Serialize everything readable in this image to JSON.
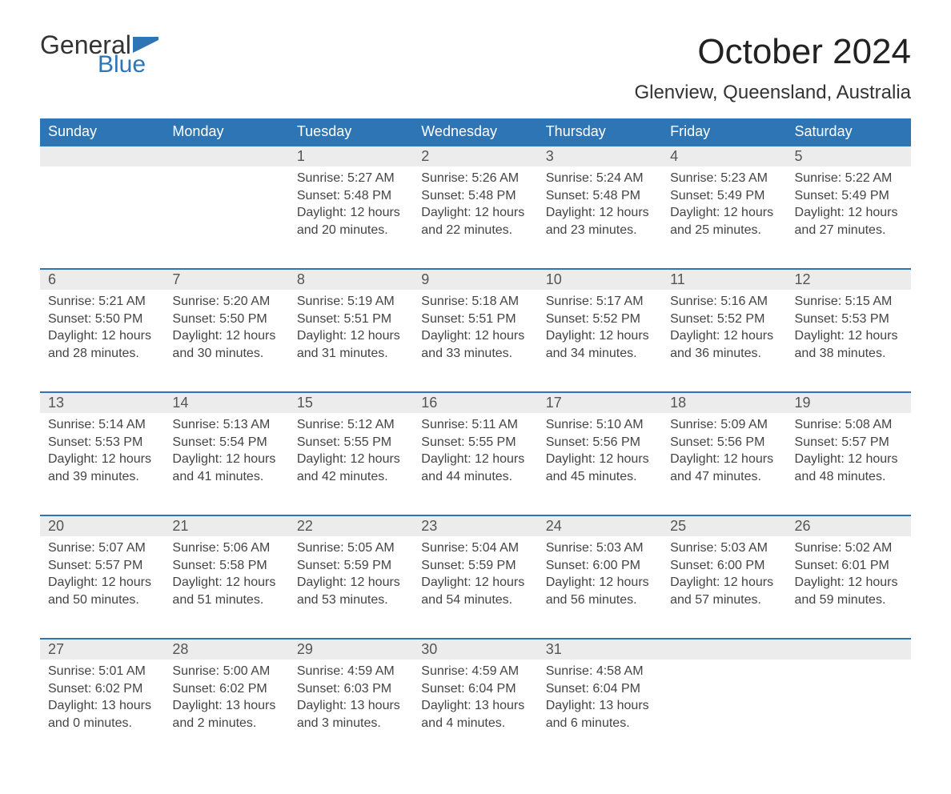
{
  "brand": {
    "word1": "General",
    "word2": "Blue",
    "accent_color": "#2e75b6"
  },
  "title": "October 2024",
  "location": "Glenview, Queensland, Australia",
  "columns": [
    "Sunday",
    "Monday",
    "Tuesday",
    "Wednesday",
    "Thursday",
    "Friday",
    "Saturday"
  ],
  "colors": {
    "header_bg": "#2e75b6",
    "header_text": "#ffffff",
    "daynum_bg": "#ececec",
    "row_border": "#2e75b6",
    "body_text": "#444444",
    "page_bg": "#ffffff"
  },
  "fonts": {
    "title_pt": 44,
    "location_pt": 24,
    "th_pt": 18,
    "daynum_pt": 18,
    "cell_pt": 16
  },
  "weeks": [
    [
      null,
      null,
      {
        "n": "1",
        "sr": "Sunrise: 5:27 AM",
        "ss": "Sunset: 5:48 PM",
        "d1": "Daylight: 12 hours",
        "d2": "and 20 minutes."
      },
      {
        "n": "2",
        "sr": "Sunrise: 5:26 AM",
        "ss": "Sunset: 5:48 PM",
        "d1": "Daylight: 12 hours",
        "d2": "and 22 minutes."
      },
      {
        "n": "3",
        "sr": "Sunrise: 5:24 AM",
        "ss": "Sunset: 5:48 PM",
        "d1": "Daylight: 12 hours",
        "d2": "and 23 minutes."
      },
      {
        "n": "4",
        "sr": "Sunrise: 5:23 AM",
        "ss": "Sunset: 5:49 PM",
        "d1": "Daylight: 12 hours",
        "d2": "and 25 minutes."
      },
      {
        "n": "5",
        "sr": "Sunrise: 5:22 AM",
        "ss": "Sunset: 5:49 PM",
        "d1": "Daylight: 12 hours",
        "d2": "and 27 minutes."
      }
    ],
    [
      {
        "n": "6",
        "sr": "Sunrise: 5:21 AM",
        "ss": "Sunset: 5:50 PM",
        "d1": "Daylight: 12 hours",
        "d2": "and 28 minutes."
      },
      {
        "n": "7",
        "sr": "Sunrise: 5:20 AM",
        "ss": "Sunset: 5:50 PM",
        "d1": "Daylight: 12 hours",
        "d2": "and 30 minutes."
      },
      {
        "n": "8",
        "sr": "Sunrise: 5:19 AM",
        "ss": "Sunset: 5:51 PM",
        "d1": "Daylight: 12 hours",
        "d2": "and 31 minutes."
      },
      {
        "n": "9",
        "sr": "Sunrise: 5:18 AM",
        "ss": "Sunset: 5:51 PM",
        "d1": "Daylight: 12 hours",
        "d2": "and 33 minutes."
      },
      {
        "n": "10",
        "sr": "Sunrise: 5:17 AM",
        "ss": "Sunset: 5:52 PM",
        "d1": "Daylight: 12 hours",
        "d2": "and 34 minutes."
      },
      {
        "n": "11",
        "sr": "Sunrise: 5:16 AM",
        "ss": "Sunset: 5:52 PM",
        "d1": "Daylight: 12 hours",
        "d2": "and 36 minutes."
      },
      {
        "n": "12",
        "sr": "Sunrise: 5:15 AM",
        "ss": "Sunset: 5:53 PM",
        "d1": "Daylight: 12 hours",
        "d2": "and 38 minutes."
      }
    ],
    [
      {
        "n": "13",
        "sr": "Sunrise: 5:14 AM",
        "ss": "Sunset: 5:53 PM",
        "d1": "Daylight: 12 hours",
        "d2": "and 39 minutes."
      },
      {
        "n": "14",
        "sr": "Sunrise: 5:13 AM",
        "ss": "Sunset: 5:54 PM",
        "d1": "Daylight: 12 hours",
        "d2": "and 41 minutes."
      },
      {
        "n": "15",
        "sr": "Sunrise: 5:12 AM",
        "ss": "Sunset: 5:55 PM",
        "d1": "Daylight: 12 hours",
        "d2": "and 42 minutes."
      },
      {
        "n": "16",
        "sr": "Sunrise: 5:11 AM",
        "ss": "Sunset: 5:55 PM",
        "d1": "Daylight: 12 hours",
        "d2": "and 44 minutes."
      },
      {
        "n": "17",
        "sr": "Sunrise: 5:10 AM",
        "ss": "Sunset: 5:56 PM",
        "d1": "Daylight: 12 hours",
        "d2": "and 45 minutes."
      },
      {
        "n": "18",
        "sr": "Sunrise: 5:09 AM",
        "ss": "Sunset: 5:56 PM",
        "d1": "Daylight: 12 hours",
        "d2": "and 47 minutes."
      },
      {
        "n": "19",
        "sr": "Sunrise: 5:08 AM",
        "ss": "Sunset: 5:57 PM",
        "d1": "Daylight: 12 hours",
        "d2": "and 48 minutes."
      }
    ],
    [
      {
        "n": "20",
        "sr": "Sunrise: 5:07 AM",
        "ss": "Sunset: 5:57 PM",
        "d1": "Daylight: 12 hours",
        "d2": "and 50 minutes."
      },
      {
        "n": "21",
        "sr": "Sunrise: 5:06 AM",
        "ss": "Sunset: 5:58 PM",
        "d1": "Daylight: 12 hours",
        "d2": "and 51 minutes."
      },
      {
        "n": "22",
        "sr": "Sunrise: 5:05 AM",
        "ss": "Sunset: 5:59 PM",
        "d1": "Daylight: 12 hours",
        "d2": "and 53 minutes."
      },
      {
        "n": "23",
        "sr": "Sunrise: 5:04 AM",
        "ss": "Sunset: 5:59 PM",
        "d1": "Daylight: 12 hours",
        "d2": "and 54 minutes."
      },
      {
        "n": "24",
        "sr": "Sunrise: 5:03 AM",
        "ss": "Sunset: 6:00 PM",
        "d1": "Daylight: 12 hours",
        "d2": "and 56 minutes."
      },
      {
        "n": "25",
        "sr": "Sunrise: 5:03 AM",
        "ss": "Sunset: 6:00 PM",
        "d1": "Daylight: 12 hours",
        "d2": "and 57 minutes."
      },
      {
        "n": "26",
        "sr": "Sunrise: 5:02 AM",
        "ss": "Sunset: 6:01 PM",
        "d1": "Daylight: 12 hours",
        "d2": "and 59 minutes."
      }
    ],
    [
      {
        "n": "27",
        "sr": "Sunrise: 5:01 AM",
        "ss": "Sunset: 6:02 PM",
        "d1": "Daylight: 13 hours",
        "d2": "and 0 minutes."
      },
      {
        "n": "28",
        "sr": "Sunrise: 5:00 AM",
        "ss": "Sunset: 6:02 PM",
        "d1": "Daylight: 13 hours",
        "d2": "and 2 minutes."
      },
      {
        "n": "29",
        "sr": "Sunrise: 4:59 AM",
        "ss": "Sunset: 6:03 PM",
        "d1": "Daylight: 13 hours",
        "d2": "and 3 minutes."
      },
      {
        "n": "30",
        "sr": "Sunrise: 4:59 AM",
        "ss": "Sunset: 6:04 PM",
        "d1": "Daylight: 13 hours",
        "d2": "and 4 minutes."
      },
      {
        "n": "31",
        "sr": "Sunrise: 4:58 AM",
        "ss": "Sunset: 6:04 PM",
        "d1": "Daylight: 13 hours",
        "d2": "and 6 minutes."
      },
      null,
      null
    ]
  ]
}
